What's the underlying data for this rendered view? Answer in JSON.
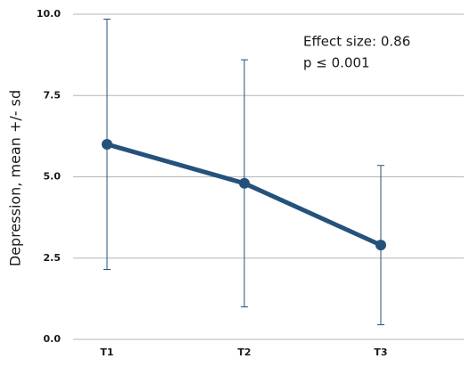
{
  "chart_data": {
    "type": "line",
    "y_label": "Depression, mean +/- sd",
    "categories": [
      "T1",
      "T2",
      "T3"
    ],
    "values": [
      6.0,
      4.8,
      2.9
    ],
    "errors": [
      3.85,
      3.8,
      2.45
    ],
    "color": "#24527a",
    "ylim": [
      0,
      10
    ],
    "yticks": [
      {
        "value": 0,
        "label": "0.0"
      },
      2.5,
      {
        "value": 5,
        "label": "5.0"
      },
      7.5,
      {
        "value": 10,
        "label": "10.0"
      }
    ],
    "grid": true,
    "annotations": [
      "Effect size: 0.86",
      "p ≤ 0.001"
    ]
  }
}
